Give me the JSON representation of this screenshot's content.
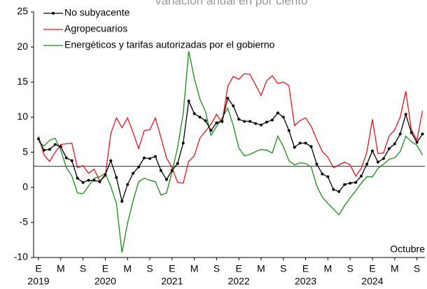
{
  "chart_data": {
    "type": "line",
    "title": "Variación anual en por ciento",
    "annotation": "Octubre",
    "categories": [
      "E",
      null,
      null,
      null,
      "M",
      null,
      null,
      null,
      "S",
      null,
      null,
      null,
      "E",
      null,
      null,
      null,
      "M",
      null,
      null,
      null,
      "S",
      null,
      null,
      null,
      "E",
      null,
      null,
      null,
      "M",
      null,
      null,
      null,
      "S",
      null,
      null,
      null,
      "E",
      null,
      null,
      null,
      "M",
      null,
      null,
      null,
      "S",
      null,
      null,
      null,
      "E",
      null,
      null,
      null,
      "M",
      null,
      null,
      null,
      "S",
      null,
      null,
      null,
      "E",
      null,
      null,
      null,
      "M",
      null,
      null,
      null,
      "S",
      null
    ],
    "years": [
      "2019",
      "2020",
      "2021",
      "2022",
      "2023",
      "2024"
    ],
    "series": [
      {
        "name": "No subyacente",
        "color": "#000000",
        "markers": true,
        "values": [
          6.9,
          5.3,
          5.4,
          6.1,
          5.8,
          4.2,
          3.8,
          1.3,
          0.7,
          1.0,
          1.0,
          0.8,
          1.8,
          3.8,
          1.4,
          -2.0,
          0.4,
          2.0,
          2.9,
          4.2,
          4.1,
          4.4,
          2.4,
          1.1,
          2.4,
          3.4,
          6.3,
          12.3,
          10.5,
          10.0,
          9.5,
          8.1,
          9.2,
          9.4,
          12.7,
          11.6,
          9.7,
          9.4,
          9.4,
          9.1,
          8.9,
          9.3,
          9.6,
          10.6,
          10.0,
          8.1,
          5.7,
          6.3,
          6.3,
          5.8,
          3.3,
          1.9,
          1.5,
          -0.3,
          -0.6,
          0.4,
          0.6,
          0.7,
          1.6,
          3.3,
          5.2,
          3.6,
          4.1,
          5.5,
          6.2,
          7.6,
          10.4,
          7.8,
          6.4,
          7.6
        ]
      },
      {
        "name": "Agropecuarios",
        "color": "#e8141c",
        "markers": false,
        "values": [
          7.3,
          4.6,
          3.7,
          5.0,
          6.1,
          6.2,
          6.3,
          2.8,
          3.1,
          2.0,
          2.6,
          0.9,
          1.6,
          7.7,
          9.9,
          8.5,
          9.9,
          7.8,
          5.5,
          8.1,
          8.2,
          9.9,
          7.1,
          4.2,
          2.8,
          0.7,
          0.6,
          3.7,
          4.5,
          7.0,
          8.0,
          9.0,
          10.4,
          9.2,
          14.4,
          15.8,
          15.4,
          16.2,
          16.1,
          14.6,
          13.1,
          15.2,
          15.9,
          14.8,
          15.0,
          14.5,
          8.8,
          9.5,
          9.9,
          8.7,
          6.8,
          5.1,
          4.3,
          2.8,
          3.2,
          3.6,
          3.2,
          1.6,
          2.7,
          5.0,
          9.7,
          4.8,
          4.9,
          7.3,
          8.2,
          10.0,
          13.7,
          8.2,
          6.7,
          10.9
        ]
      },
      {
        "name": "Energéticos y tarifas autorizadas por el gobierno",
        "color": "#1a8c1a",
        "markers": false,
        "values": [
          6.5,
          5.9,
          6.7,
          7.0,
          5.3,
          2.8,
          1.6,
          -0.8,
          -0.9,
          0.2,
          1.3,
          1.5,
          2.0,
          0.1,
          -2.3,
          -9.3,
          -5.1,
          -1.9,
          0.8,
          1.3,
          1.0,
          0.8,
          -1.1,
          -0.8,
          2.2,
          5.7,
          10.5,
          19.4,
          15.5,
          12.6,
          10.8,
          7.4,
          8.7,
          9.9,
          11.3,
          8.8,
          5.6,
          4.5,
          4.7,
          5.1,
          5.4,
          5.3,
          4.9,
          7.3,
          5.8,
          3.8,
          3.2,
          3.5,
          3.4,
          2.9,
          0.2,
          -1.4,
          -2.3,
          -3.1,
          -3.9,
          -2.6,
          -1.5,
          -0.5,
          0.6,
          1.5,
          1.5,
          2.7,
          3.3,
          4.0,
          4.2,
          5.1,
          7.3,
          6.5,
          6.0,
          4.6
        ]
      }
    ],
    "reference_line": 3,
    "ylim": [
      -10,
      25
    ],
    "yticks": [
      -10,
      -5,
      0,
      5,
      10,
      15,
      20,
      25
    ],
    "legend": "top-left"
  }
}
